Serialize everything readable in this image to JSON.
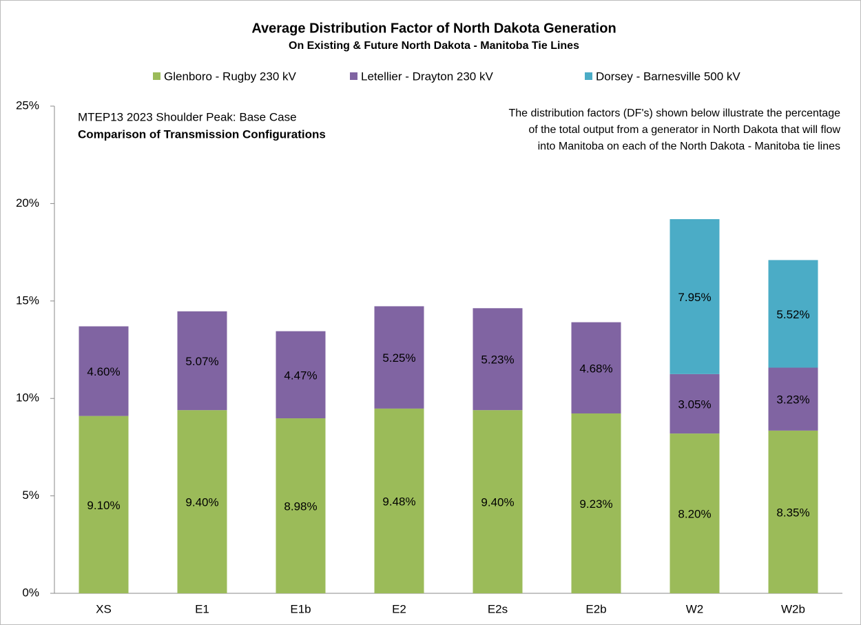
{
  "chart_data": {
    "type": "stacked_bar",
    "title": "Average Distribution Factor of North Dakota Generation",
    "subtitle": "On Existing & Future North Dakota - Manitoba Tie Lines",
    "annotations": [
      "MTEP13 2023 Shoulder Peak: Base Case",
      "Comparison of Transmission Configurations",
      "The distribution factors (DF's) shown below illustrate the percentage",
      "of the total output from a generator in North Dakota that will flow",
      "into Manitoba on each of the North Dakota - Manitoba tie lines"
    ],
    "categories": [
      "XS",
      "E1",
      "E1b",
      "E2",
      "E2s",
      "E2b",
      "W2",
      "W2b"
    ],
    "series": [
      {
        "name": "Glenboro - Rugby 230 kV",
        "color": "#9bbb59",
        "values": [
          9.1,
          9.4,
          8.98,
          9.48,
          9.4,
          9.23,
          8.2,
          8.35
        ],
        "value_labels": [
          "9.10%",
          "9.40%",
          "8.98%",
          "9.48%",
          "9.40%",
          "9.23%",
          "8.20%",
          "8.35%"
        ]
      },
      {
        "name": "Letellier - Drayton 230 kV",
        "color": "#8064a2",
        "values": [
          4.6,
          5.07,
          4.47,
          5.25,
          5.23,
          4.68,
          3.05,
          3.23
        ],
        "value_labels": [
          "4.60%",
          "5.07%",
          "4.47%",
          "5.25%",
          "5.23%",
          "4.68%",
          "3.05%",
          "3.23%"
        ]
      },
      {
        "name": "Dorsey - Barnesville 500 kV",
        "color": "#4bacc6",
        "values": [
          null,
          null,
          null,
          null,
          null,
          null,
          7.95,
          5.52
        ],
        "value_labels": [
          null,
          null,
          null,
          null,
          null,
          null,
          "7.95%",
          "5.52%"
        ]
      }
    ],
    "ylim": [
      0,
      25
    ],
    "yticks": [
      {
        "value": 0,
        "label": "0%"
      },
      {
        "value": 5,
        "label": "5%"
      },
      {
        "value": 10,
        "label": "10%"
      },
      {
        "value": 15,
        "label": "15%"
      },
      {
        "value": 20,
        "label": "20%"
      },
      {
        "value": 25,
        "label": "25%"
      }
    ],
    "legend": "top",
    "grid": false
  }
}
